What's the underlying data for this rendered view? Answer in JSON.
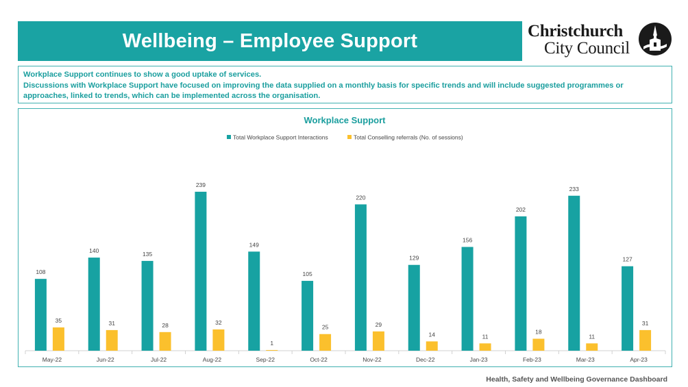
{
  "header": {
    "title": "Wellbeing – Employee Support",
    "logo_line1": "Christchurch",
    "logo_line2": "City Council",
    "logo_emblem_icon": "cathedral-emblem-icon"
  },
  "notes": {
    "line1": "Workplace Support continues to show a good uptake of services.",
    "line2": "Discussions with Workplace Support have focused on improving the data supplied on a monthly basis for specific trends and will include suggested programmes or approaches, linked to trends, which can be implemented across the organisation."
  },
  "footer": {
    "text": "Health, Safety and Wellbeing Governance Dashboard"
  },
  "colors": {
    "teal": "#17a2a2",
    "yellow": "#fbc02d",
    "title_teal": "#1aa3a3"
  },
  "chart_data": {
    "type": "bar",
    "title": "Workplace Support",
    "xlabel": "",
    "ylabel": "",
    "ylim": [
      0,
      250
    ],
    "grid": false,
    "legend_position": "top-center",
    "categories": [
      "May-22",
      "Jun-22",
      "Jul-22",
      "Aug-22",
      "Sep-22",
      "Oct-22",
      "Nov-22",
      "Dec-22",
      "Jan-23",
      "Feb-23",
      "Mar-23",
      "Apr-23"
    ],
    "series": [
      {
        "name": "Total Workplace Support Interactions",
        "color": "#17a2a2",
        "values": [
          108,
          140,
          135,
          239,
          149,
          105,
          220,
          129,
          156,
          202,
          233,
          127
        ]
      },
      {
        "name": "Total Conselling referrals (No. of sessions)",
        "color": "#fbc02d",
        "values": [
          35,
          31,
          28,
          32,
          1,
          25,
          29,
          14,
          11,
          18,
          11,
          31
        ]
      }
    ]
  }
}
